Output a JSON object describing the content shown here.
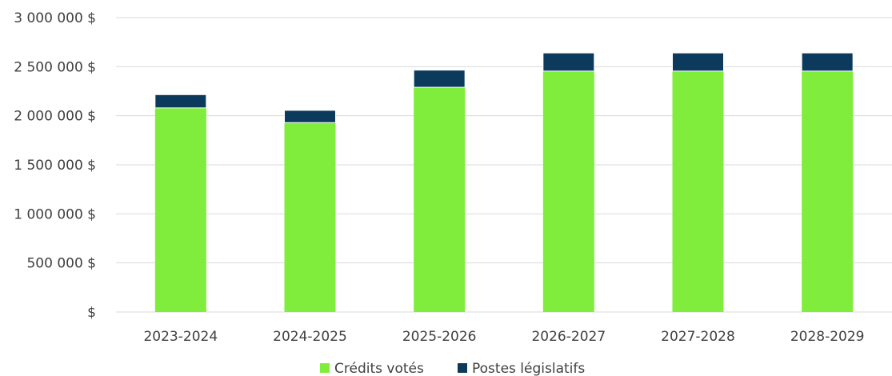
{
  "chart_data": {
    "type": "bar",
    "stacked": true,
    "categories": [
      "2023-2024",
      "2024-2025",
      "2025-2026",
      "2026-2027",
      "2027-2028",
      "2028-2029"
    ],
    "series": [
      {
        "name": "Crédits votés",
        "color": "#80ed3c",
        "values": [
          2080000,
          1930000,
          2290000,
          2455000,
          2455000,
          2455000
        ]
      },
      {
        "name": "Postes législatifs",
        "color": "#0b3a5c",
        "values": [
          135000,
          125000,
          175000,
          185000,
          185000,
          185000
        ]
      }
    ],
    "ylim": [
      0,
      3000000
    ],
    "y_ticks": [
      0,
      500000,
      1000000,
      1500000,
      2000000,
      2500000,
      3000000
    ],
    "y_tick_labels": [
      "$",
      "500 000 $",
      "1 000 000 $",
      "1 500 000 $",
      "2 000 000 $",
      "2 500 000 $",
      "3 000 000 $"
    ],
    "grid": true,
    "grid_color": "#d9d9d9",
    "legend_position": "bottom"
  }
}
